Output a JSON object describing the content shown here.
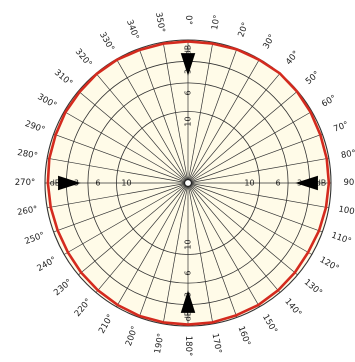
{
  "chart_data": {
    "type": "polar",
    "title": "",
    "angular_ticks": [
      "0°",
      "10°",
      "20°",
      "30°",
      "40°",
      "50°",
      "60°",
      "70°",
      "80°",
      "90°",
      "100°",
      "110°",
      "120°",
      "130°",
      "140°",
      "150°",
      "160°",
      "170°",
      "180°",
      "190°",
      "200°",
      "210°",
      "220°",
      "230°",
      "240°",
      "250°",
      "260°",
      "270°",
      "280°",
      "290°",
      "300°",
      "310°",
      "320°",
      "330°",
      "340°",
      "350°"
    ],
    "radial_ticks": [
      "dB",
      "3",
      "6",
      "10"
    ],
    "radial_unit": "dB",
    "radial_rings_db": [
      0,
      -3,
      -6,
      -10,
      -20
    ],
    "angular_step_deg": 10,
    "series": [
      {
        "color": "#d42a1e",
        "angles_deg": [
          0,
          10,
          20,
          30,
          40,
          50,
          60,
          70,
          80,
          90,
          100,
          110,
          120,
          130,
          140,
          150,
          160,
          170,
          180,
          190,
          200,
          210,
          220,
          230,
          240,
          250,
          260,
          270,
          280,
          290,
          300,
          310,
          320,
          330,
          340,
          350
        ],
        "values_db": [
          -0.2,
          -0.2,
          -0.1,
          -0.1,
          0,
          -0.1,
          -0.2,
          -0.3,
          -0.3,
          -0.3,
          -0.4,
          -0.5,
          -0.6,
          -0.5,
          -0.4,
          -0.3,
          -0.3,
          -0.2,
          -0.2,
          -0.2,
          -0.2,
          -0.3,
          -0.4,
          -0.5,
          -0.6,
          -0.6,
          -0.5,
          -0.4,
          -0.3,
          -0.3,
          -0.2,
          -0.2,
          -0.1,
          -0.1,
          -0.2,
          -0.2
        ]
      }
    ],
    "grid": true,
    "fill_color": "#fffbe8",
    "grid_color": "#333333"
  }
}
